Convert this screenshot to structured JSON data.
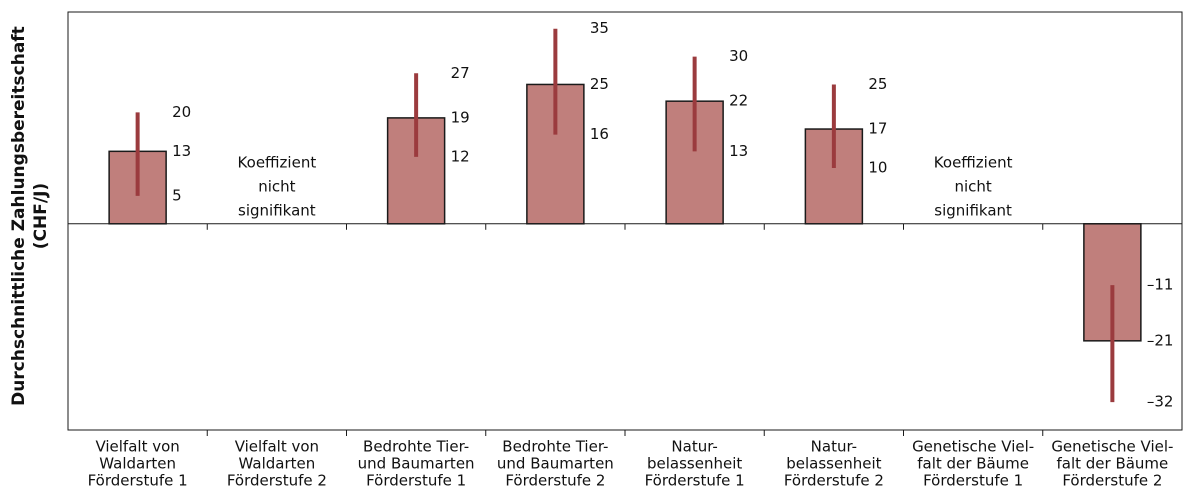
{
  "chart_data": {
    "type": "bar",
    "title": "",
    "ylabel": [
      "Durchschnittliche Zahlungsbereitschaft",
      "(CHF/J)"
    ],
    "categories": [
      [
        "Vielfalt von",
        "Waldarten",
        "Förderstufe 1"
      ],
      [
        "Vielfalt von",
        "Waldarten",
        "Förderstufe 2"
      ],
      [
        "Bedrohte Tier-",
        "und Baumarten",
        "Förderstufe 1"
      ],
      [
        "Bedrohte Tier-",
        "und Baumarten",
        "Förderstufe 2"
      ],
      [
        "Natur-",
        "belassenheit",
        "Förderstufe 1"
      ],
      [
        "Natur-",
        "belassenheit",
        "Förderstufe 2"
      ],
      [
        "Genetische Viel-",
        "falt der Bäume",
        "Förderstufe 1"
      ],
      [
        "Genetische Viel-",
        "falt der Bäume",
        "Förderstufe 2"
      ]
    ],
    "values": [
      13,
      null,
      19,
      25,
      22,
      17,
      null,
      -21
    ],
    "ci_low": [
      5,
      null,
      12,
      16,
      13,
      10,
      null,
      -32
    ],
    "ci_high": [
      20,
      null,
      27,
      35,
      30,
      25,
      null,
      -11
    ],
    "value_labels": [
      "13",
      "",
      "19",
      "25",
      "22",
      "17",
      "",
      "–21"
    ],
    "ci_low_labels": [
      "5",
      "",
      "12",
      "16",
      "13",
      "10",
      "",
      "–32"
    ],
    "ci_high_labels": [
      "20",
      "",
      "27",
      "35",
      "30",
      "25",
      "",
      "–11"
    ],
    "not_significant_text": [
      "Koeffizient",
      "nicht",
      "signifikant"
    ],
    "ylim": [
      -37,
      38
    ],
    "colors": {
      "bar": "#c07f7c",
      "bar_edge": "#1a1a1a",
      "error": "#9b3b3e",
      "axis": "#1a1a1a"
    }
  }
}
